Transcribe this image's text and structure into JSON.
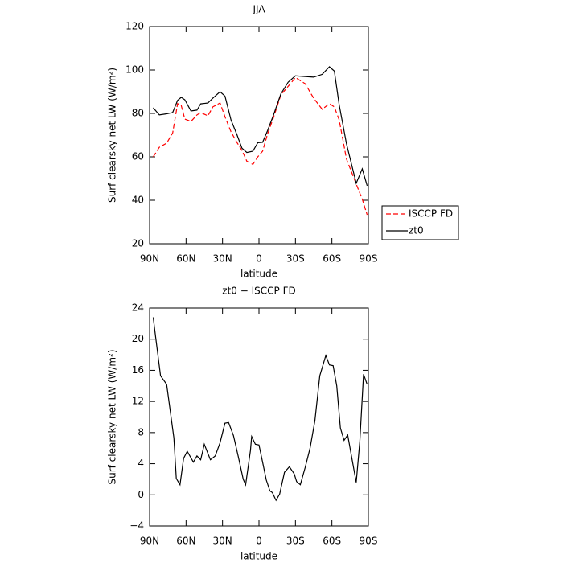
{
  "chart_data": [
    {
      "type": "line",
      "title": "JJA",
      "x_label": "latitude",
      "y_label": "Surf clearsky net LW (W/m²)",
      "xlim": [
        90,
        -90
      ],
      "xticks": [
        {
          "value": 90,
          "label": "90N"
        },
        {
          "value": 60,
          "label": "60N"
        },
        {
          "value": 30,
          "label": "30N"
        },
        0,
        {
          "value": -30,
          "label": "30S"
        },
        {
          "value": -60,
          "label": "60S"
        },
        {
          "value": -90,
          "label": "90S"
        }
      ],
      "ylim": [
        20,
        120
      ],
      "yticks": [
        20,
        40,
        60,
        80,
        100,
        120
      ],
      "legend": "outside-right",
      "x": [
        87,
        82,
        76,
        71,
        67,
        64,
        61,
        56,
        51,
        48,
        42,
        38,
        32,
        28,
        23,
        18,
        14,
        10,
        5,
        1,
        -3,
        -7,
        -12,
        -18,
        -24,
        -30,
        -38,
        -45,
        -52,
        -58,
        -62,
        -66,
        -72,
        -80,
        -85,
        -89
      ],
      "series": [
        {
          "name": "ISCCP FD",
          "color": "#ff0000",
          "dashed": true,
          "values": [
            60,
            64.4,
            66.3,
            71,
            84.5,
            83.7,
            77.4,
            76.3,
            79.3,
            80.4,
            78.9,
            83,
            84.8,
            78.5,
            71.5,
            66.5,
            63,
            58,
            56.5,
            60,
            62.6,
            70.5,
            78.1,
            88.5,
            92.5,
            96.5,
            93.7,
            87,
            81.9,
            84.5,
            83,
            77,
            59,
            47.5,
            40.5,
            33.3
          ]
        },
        {
          "name": "zt0",
          "color": "#000000",
          "dashed": false,
          "values": [
            82.6,
            79.3,
            79.8,
            80.4,
            86,
            87.4,
            86.3,
            81.1,
            81.5,
            84.4,
            84.8,
            87,
            90,
            88,
            77,
            70,
            64,
            62,
            62.6,
            66.5,
            66.7,
            72,
            79.3,
            89,
            94.4,
            97.3,
            97,
            96.7,
            98,
            101.5,
            99.5,
            84,
            66,
            47.8,
            54.5,
            46.7
          ]
        }
      ]
    },
    {
      "type": "line",
      "title": "zt0 − ISCCP FD",
      "x_label": "latitude",
      "y_label": "Surf clearsky net LW (W/m²)",
      "xlim": [
        90,
        -90
      ],
      "xticks": [
        {
          "value": 90,
          "label": "90N"
        },
        {
          "value": 60,
          "label": "60N"
        },
        {
          "value": 30,
          "label": "30N"
        },
        0,
        {
          "value": -30,
          "label": "30S"
        },
        {
          "value": -60,
          "label": "60S"
        },
        {
          "value": -90,
          "label": "90S"
        }
      ],
      "ylim": [
        -4,
        24
      ],
      "yticks": [
        {
          "value": -4,
          "label": "−4"
        },
        0,
        4,
        8,
        12,
        16,
        20,
        24
      ],
      "color": "#000000",
      "x": [
        87,
        85,
        81,
        76,
        74,
        70,
        68,
        65,
        62,
        59,
        54,
        51,
        48,
        45,
        40,
        36,
        32,
        28,
        25,
        21,
        17,
        13,
        11,
        7,
        6,
        3,
        0,
        -3,
        -6,
        -9,
        -11,
        -14,
        -17,
        -21,
        -25,
        -29,
        -31,
        -34,
        -38,
        -42,
        -46,
        -50,
        -55,
        -58,
        -61,
        -64,
        -67,
        -70,
        -73,
        -76,
        -80,
        -83,
        -86,
        -89
      ],
      "values": [
        22.8,
        20.2,
        15.3,
        14.2,
        11.9,
        7.3,
        2.1,
        1.3,
        4.7,
        5.6,
        4.2,
        5,
        4.5,
        6.5,
        4.5,
        5,
        6.7,
        9.2,
        9.3,
        7.6,
        4.9,
        2,
        1.3,
        5.7,
        7.5,
        6.5,
        6.4,
        4.2,
        1.9,
        0.5,
        0.3,
        -0.7,
        0.1,
        2.9,
        3.6,
        2.7,
        1.7,
        1.3,
        3.5,
        6,
        9.5,
        15.3,
        17.9,
        16.7,
        16.6,
        14,
        8.6,
        7,
        7.7,
        5.1,
        1.6,
        6.9,
        15.5,
        14.2
      ]
    }
  ]
}
